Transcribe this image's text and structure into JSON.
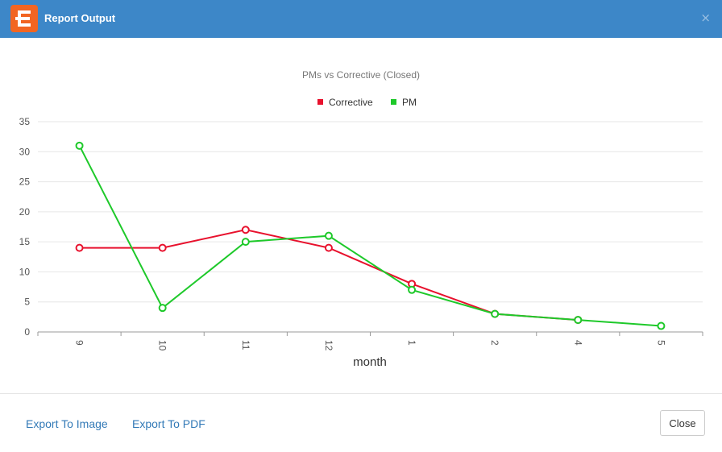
{
  "window": {
    "title": "Report Output",
    "close_glyph": "×",
    "logo_icon": "app-logo-icon",
    "header_color": "#3d87c8"
  },
  "footer": {
    "export_image_label": "Export To Image",
    "export_pdf_label": "Export To PDF",
    "close_label": "Close"
  },
  "chart_data": {
    "type": "line",
    "title": "PMs vs Corrective (Closed)",
    "xlabel": "month",
    "ylabel": "",
    "categories": [
      "9",
      "10",
      "11",
      "12",
      "1",
      "2",
      "4",
      "5"
    ],
    "ylim": [
      0,
      35
    ],
    "yticks": [
      0,
      5,
      10,
      15,
      20,
      25,
      30,
      35
    ],
    "grid": true,
    "legend_position": "top-center",
    "series": [
      {
        "name": "Corrective",
        "color": "#e8112d",
        "values": [
          14,
          14,
          17,
          14,
          8,
          3,
          2,
          null
        ]
      },
      {
        "name": "PM",
        "color": "#1ec92a",
        "values": [
          31,
          4,
          15,
          16,
          7,
          3,
          2,
          1
        ]
      }
    ]
  }
}
